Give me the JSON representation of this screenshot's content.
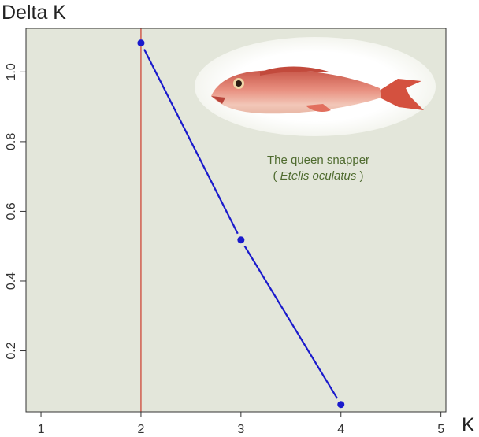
{
  "chart_data": {
    "type": "line",
    "title": "",
    "ylabel": "Delta K",
    "xlabel": "K",
    "xlim": [
      0.85,
      5.05
    ],
    "ylim": [
      0.025,
      1.125
    ],
    "xticks": [
      1,
      2,
      3,
      4,
      5
    ],
    "yticks": [
      0.2,
      0.4,
      0.6,
      0.8,
      1.0
    ],
    "xtick_labels": [
      "1",
      "2",
      "3",
      "4",
      "5"
    ],
    "ytick_labels": [
      "0.2",
      "0.4",
      "0.6",
      "0.8",
      "1.0"
    ],
    "grid": false,
    "series": [
      {
        "x": [
          2,
          3,
          4
        ],
        "y": [
          1.083,
          0.518,
          0.046
        ],
        "color": "#1a1acc"
      }
    ],
    "reference_line": {
      "x": 2,
      "color": "#cc3a2a"
    },
    "plot_background": "#e3e6da",
    "annotation": {
      "common_name": "The queen snapper",
      "scientific_name_prefix": "( ",
      "scientific_name": "Etelis oculatus",
      "scientific_name_suffix": " )",
      "color": "#4f6b2f"
    }
  }
}
